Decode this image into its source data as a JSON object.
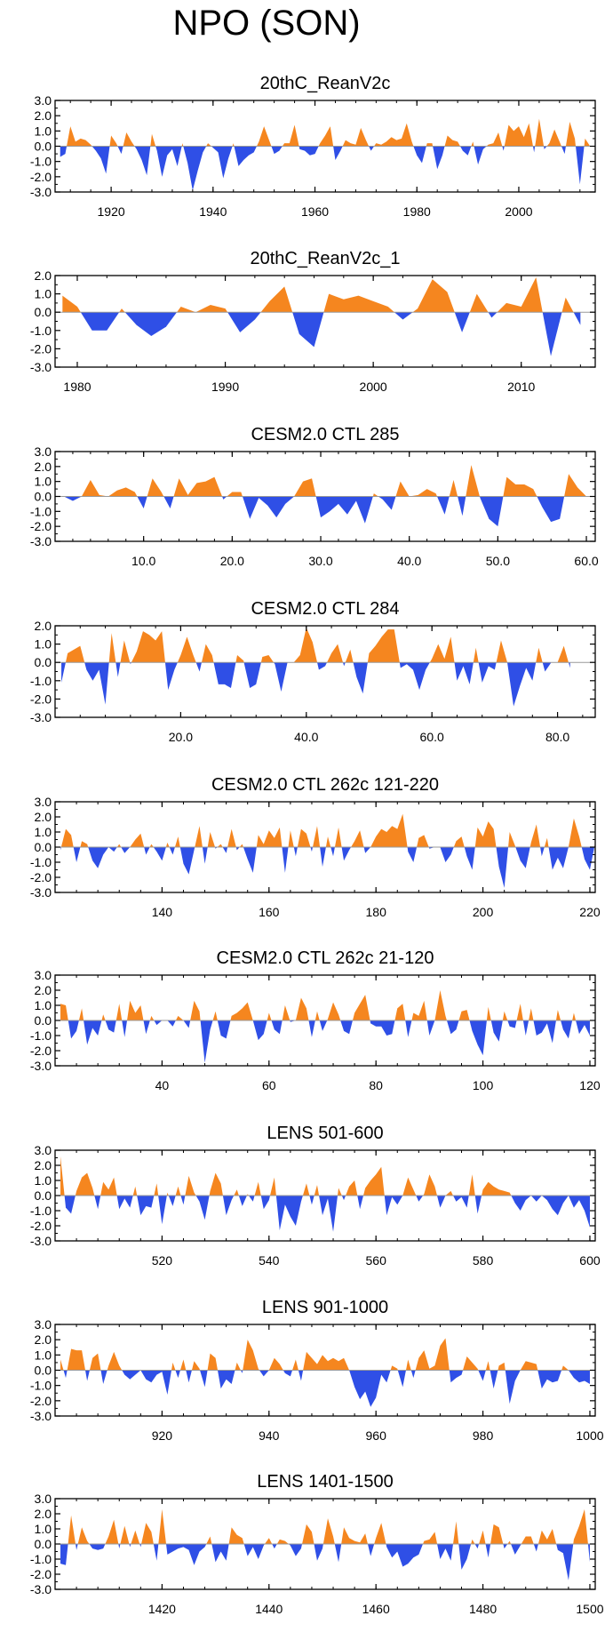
{
  "figure": {
    "title": "NPO (SON)"
  },
  "colors": {
    "positive": "#f5861f",
    "negative": "#2f4fe6",
    "axis": "#000000"
  },
  "chart_data": [
    {
      "type": "area",
      "title": "20thC_ReanV2c",
      "xlim": [
        1909,
        2015
      ],
      "ylim": [
        -3,
        3
      ],
      "yticks": [
        -3,
        -2,
        -1,
        0,
        1,
        2,
        3
      ],
      "ytick_labels": [
        "-3.0",
        "-2.0",
        "-1.0",
        "0.0",
        "1.0",
        "2.0",
        "3.0"
      ],
      "xticks": [
        1920,
        1940,
        1960,
        1980,
        2000
      ],
      "xtick_labels": [
        "1920",
        "1940",
        "1960",
        "1980",
        "2000"
      ],
      "x_start": 1910,
      "values": [
        -0.7,
        -0.5,
        1.3,
        0.3,
        0.5,
        0.4,
        0.1,
        -0.3,
        -0.8,
        -1.8,
        0.7,
        0.2,
        -0.5,
        0.9,
        0.3,
        -0.2,
        -0.9,
        -1.9,
        0.8,
        -0.3,
        -2.0,
        -0.6,
        -0.2,
        -1.3,
        0.2,
        -1.1,
        -2.9,
        -1.6,
        -0.4,
        0.2,
        -0.1,
        -0.4,
        -2.1,
        -0.8,
        0.2,
        -1.3,
        -0.9,
        -0.6,
        -0.4,
        0.3,
        1.3,
        0.4,
        -0.5,
        -0.3,
        0.2,
        0.2,
        1.4,
        -0.2,
        -0.3,
        -0.6,
        -0.5,
        0.2,
        0.7,
        1.3,
        -0.9,
        -0.3,
        0.4,
        0.2,
        0.1,
        1.2,
        0.4,
        -0.3,
        0.2,
        0.1,
        0.3,
        0.6,
        0.4,
        0.5,
        1.5,
        0.3,
        -0.6,
        -1.1,
        0.2,
        0.2,
        -1.5,
        -0.6,
        0.7,
        0.4,
        0.3,
        -0.3,
        -0.6,
        0.3,
        -1.2,
        -0.2,
        0.1,
        0.2,
        0.9,
        -0.3,
        1.4,
        1.0,
        1.3,
        0.6,
        1.5,
        -0.4,
        1.8,
        -0.2,
        0.2,
        1.1,
        0.3,
        -0.5,
        1.6,
        0.5,
        -2.5,
        0.5,
        0.0
      ]
    },
    {
      "type": "area",
      "title": "20thC_ReanV2c_1",
      "xlim": [
        1978.5,
        2015
      ],
      "ylim": [
        -3,
        2
      ],
      "yticks": [
        -3,
        -2,
        -1,
        0,
        1,
        2
      ],
      "ytick_labels": [
        "-3.0",
        "-2.0",
        "-1.0",
        "0.0",
        "1.0",
        "2.0"
      ],
      "xticks": [
        1980,
        1990,
        2000,
        2010
      ],
      "xtick_labels": [
        "1980",
        "1990",
        "2000",
        "2010"
      ],
      "x_start": 1979,
      "values": [
        0.9,
        0.3,
        -1.0,
        -1.0,
        0.2,
        -0.7,
        -1.3,
        -0.8,
        0.3,
        0.0,
        0.4,
        0.2,
        -1.1,
        -0.4,
        0.6,
        1.4,
        -1.2,
        -1.9,
        1.0,
        0.7,
        0.9,
        0.6,
        0.3,
        -0.4,
        0.2,
        1.8,
        1.1,
        -1.1,
        1.0,
        -0.3,
        0.5,
        0.3,
        1.9,
        -2.4,
        0.8,
        -0.7
      ]
    },
    {
      "type": "area",
      "title": "CESM2.0 CTL 285",
      "xlim": [
        0,
        61
      ],
      "ylim": [
        -3,
        3
      ],
      "yticks": [
        -3,
        -2,
        -1,
        0,
        1,
        2,
        3
      ],
      "ytick_labels": [
        "-3.0",
        "-2.0",
        "-1.0",
        "0.0",
        "1.0",
        "2.0",
        "3.0"
      ],
      "xticks": [
        10,
        20,
        30,
        40,
        50,
        60
      ],
      "xtick_labels": [
        "10.0",
        "20.0",
        "30.0",
        "40.0",
        "50.0",
        "60.0"
      ],
      "x_start": 1,
      "values": [
        0.0,
        -0.3,
        0.0,
        1.1,
        0.1,
        0.0,
        0.4,
        0.6,
        0.3,
        -0.8,
        1.2,
        0.3,
        -0.8,
        1.2,
        0.1,
        0.9,
        1.0,
        1.3,
        -0.2,
        0.3,
        0.3,
        -1.5,
        -0.1,
        -0.6,
        -1.4,
        -0.5,
        0.0,
        1.0,
        1.2,
        -1.4,
        -1.0,
        -0.5,
        -1.2,
        -0.3,
        -1.8,
        0.2,
        -0.2,
        -0.9,
        1.0,
        0.0,
        0.1,
        0.5,
        0.2,
        -1.2,
        1.1,
        -1.3,
        2.1,
        -0.1,
        -1.5,
        -2.0,
        1.3,
        0.8,
        0.8,
        0.5,
        -0.7,
        -1.7,
        -1.5,
        1.5,
        0.6,
        0.0
      ]
    },
    {
      "type": "area",
      "title": "CESM2.0 CTL 284",
      "xlim": [
        0,
        86
      ],
      "ylim": [
        -3,
        2
      ],
      "yticks": [
        -3,
        -2,
        -1,
        0,
        1,
        2
      ],
      "ytick_labels": [
        "-3.0",
        "-2.0",
        "-1.0",
        "0.0",
        "1.0",
        "2.0"
      ],
      "xticks": [
        20,
        40,
        60,
        80
      ],
      "xtick_labels": [
        "20.0",
        "40.0",
        "60.0",
        "80.0"
      ],
      "x_start": 1,
      "values": [
        -1.1,
        0.5,
        0.7,
        0.9,
        -0.4,
        -1.0,
        -0.4,
        -2.3,
        1.6,
        -0.8,
        1.2,
        -0.1,
        0.6,
        1.7,
        1.5,
        1.2,
        1.7,
        -1.5,
        -0.4,
        0.4,
        1.4,
        0.4,
        -0.5,
        1.0,
        0.4,
        -1.2,
        -1.2,
        -1.4,
        0.4,
        0.1,
        -1.4,
        -1.2,
        0.3,
        0.4,
        -0.1,
        -1.6,
        0.0,
        0.0,
        0.4,
        1.9,
        1.1,
        -0.4,
        -0.2,
        0.5,
        1.0,
        -0.2,
        0.7,
        -0.8,
        -1.7,
        0.5,
        0.9,
        1.4,
        1.8,
        1.8,
        -0.3,
        -0.1,
        -0.4,
        -1.5,
        -0.4,
        0.2,
        1.0,
        0.2,
        1.4,
        -1.0,
        -0.2,
        -1.2,
        0.8,
        -1.1,
        -0.2,
        -0.4,
        1.2,
        0.0,
        -2.4,
        -1.3,
        -0.3,
        -1.0,
        0.8,
        -0.5,
        0.0,
        0.0,
        0.9,
        -0.3
      ]
    },
    {
      "type": "area",
      "title": "CESM2.0 CTL 262c 121-220",
      "xlim": [
        120,
        221
      ],
      "ylim": [
        -3,
        3
      ],
      "yticks": [
        -3,
        -2,
        -1,
        0,
        1,
        2,
        3
      ],
      "ytick_labels": [
        "-3.0",
        "-2.0",
        "-1.0",
        "0.0",
        "1.0",
        "2.0",
        "3.0"
      ],
      "xticks": [
        140,
        160,
        180,
        200,
        220
      ],
      "xtick_labels": [
        "140",
        "160",
        "180",
        "200",
        "220"
      ],
      "x_start": 121,
      "values": [
        -0.2,
        1.2,
        0.8,
        -1.0,
        0.4,
        0.2,
        -0.9,
        -1.4,
        -0.5,
        0.0,
        -0.3,
        0.2,
        -0.4,
        0.0,
        0.5,
        0.9,
        -0.5,
        0.2,
        -0.3,
        -0.9,
        0.3,
        -0.5,
        0.7,
        -1.1,
        -1.8,
        -0.2,
        1.4,
        -1.1,
        1.0,
        -0.1,
        0.2,
        -0.4,
        1.2,
        -0.2,
        0.2,
        -0.8,
        -1.7,
        0.8,
        0.2,
        1.1,
        0.6,
        1.3,
        -1.7,
        1.1,
        -0.6,
        1.2,
        0.9,
        -0.3,
        1.4,
        -1.3,
        0.7,
        -0.6,
        1.3,
        -0.9,
        -0.2,
        0.4,
        1.1,
        -0.4,
        0.0,
        0.7,
        1.2,
        1.0,
        1.4,
        1.2,
        2.2,
        -0.3,
        -1.0,
        0.6,
        0.8,
        -0.1,
        0.0,
        0.0,
        -1.0,
        -0.5,
        0.4,
        0.7,
        -0.6,
        -1.5,
        1.3,
        0.7,
        1.7,
        1.2,
        -1.3,
        -2.7,
        1.0,
        0.1,
        -0.9,
        -1.4,
        0.3,
        1.5,
        -0.6,
        0.6,
        -1.5,
        -0.7,
        -1.4,
        0.0,
        1.9,
        0.7,
        -0.8,
        -1.5,
        0.3
      ]
    },
    {
      "type": "area",
      "title": "CESM2.0 CTL 262c 21-120",
      "xlim": [
        20,
        121
      ],
      "ylim": [
        -3,
        3
      ],
      "yticks": [
        -3,
        -2,
        -1,
        0,
        1,
        2,
        3
      ],
      "ytick_labels": [
        "-3.0",
        "-2.0",
        "-1.0",
        "0.0",
        "1.0",
        "2.0",
        "3.0"
      ],
      "xticks": [
        40,
        60,
        80,
        100,
        120
      ],
      "xtick_labels": [
        "40",
        "60",
        "80",
        "100",
        "120"
      ],
      "x_start": 21,
      "values": [
        1.1,
        1.0,
        -1.2,
        -0.7,
        0.8,
        -1.6,
        -0.5,
        -1.0,
        0.4,
        -0.6,
        -0.8,
        1.1,
        -1.1,
        1.3,
        0.5,
        1.0,
        -0.9,
        0.3,
        -0.3,
        0.0,
        0.0,
        -0.4,
        0.3,
        0.0,
        -0.5,
        1.3,
        0.6,
        -2.8,
        -0.6,
        0.6,
        -1.0,
        -1.2,
        0.3,
        0.5,
        0.8,
        1.2,
        0.0,
        -1.3,
        -0.9,
        0.5,
        -0.6,
        -0.9,
        1.0,
        -0.1,
        0.0,
        1.5,
        0.8,
        -1.1,
        0.6,
        -0.7,
        0.1,
        1.2,
        0.4,
        -0.7,
        -0.9,
        0.5,
        1.1,
        1.7,
        -0.2,
        -0.4,
        -0.4,
        -1.0,
        -0.9,
        0.8,
        1.1,
        -1.1,
        0.5,
        0.3,
        1.3,
        -1.0,
        0.0,
        2.0,
        0.3,
        -0.9,
        -0.6,
        0.6,
        0.7,
        -0.7,
        -1.6,
        -2.3,
        0.9,
        -0.8,
        -1.4,
        0.6,
        -0.4,
        -0.5,
        1.1,
        -1.0,
        0.8,
        -1.0,
        -0.8,
        -0.2,
        -1.5,
        0.7,
        -0.6,
        -1.2,
        0.5,
        -0.9,
        -0.3,
        -1.0
      ]
    },
    {
      "type": "area",
      "title": "LENS 501-600",
      "xlim": [
        500,
        601
      ],
      "ylim": [
        -3,
        3
      ],
      "yticks": [
        -3,
        -2,
        -1,
        0,
        1,
        2,
        3
      ],
      "ytick_labels": [
        "-3.0",
        "-2.0",
        "-1.0",
        "0.0",
        "1.0",
        "2.0",
        "3.0"
      ],
      "xticks": [
        520,
        540,
        560,
        580,
        600
      ],
      "xtick_labels": [
        "520",
        "540",
        "560",
        "580",
        "600"
      ],
      "x_start": 501,
      "values": [
        2.6,
        -0.8,
        -1.2,
        0.3,
        1.2,
        1.5,
        0.5,
        -0.9,
        0.9,
        0.4,
        1.2,
        -0.9,
        -0.2,
        -0.8,
        0.6,
        -1.3,
        -0.7,
        -0.8,
        0.8,
        -1.9,
        0.2,
        -0.7,
        0.6,
        -0.6,
        1.3,
        0.2,
        -0.4,
        -1.6,
        0.3,
        1.5,
        0.8,
        -1.3,
        -0.3,
        0.4,
        -0.7,
        0.1,
        -0.4,
        0.9,
        -0.9,
        -0.3,
        1.2,
        -2.3,
        -0.6,
        -1.4,
        -2.0,
        -0.4,
        0.8,
        -0.6,
        0.7,
        -1.3,
        -0.2,
        -2.4,
        0.5,
        -0.3,
        0.6,
        1.0,
        -0.9,
        0.5,
        1.0,
        1.4,
        1.9,
        -1.3,
        -0.1,
        -0.6,
        0.0,
        1.2,
        0.4,
        -0.4,
        0.1,
        1.4,
        0.6,
        -0.8,
        0.0,
        0.3,
        -0.4,
        -0.1,
        -0.8,
        1.4,
        -1.2,
        0.4,
        0.9,
        0.6,
        0.4,
        0.3,
        0.2,
        -0.5,
        -1.0,
        -0.3,
        0.0,
        -0.4,
        0.0,
        -0.3,
        -0.9,
        -1.3,
        -0.5,
        0.0,
        -0.8,
        -0.3,
        -1.0,
        -2.1
      ]
    },
    {
      "type": "area",
      "title": "LENS 901-1000",
      "xlim": [
        900,
        1001
      ],
      "ylim": [
        -3,
        3
      ],
      "yticks": [
        -3,
        -2,
        -1,
        0,
        1,
        2,
        3
      ],
      "ytick_labels": [
        "-3.0",
        "-2.0",
        "-1.0",
        "0.0",
        "1.0",
        "2.0",
        "3.0"
      ],
      "xticks": [
        920,
        940,
        960,
        980,
        1000
      ],
      "xtick_labels": [
        "920",
        "940",
        "960",
        "980",
        "1000"
      ],
      "x_start": 901,
      "values": [
        0.7,
        -0.5,
        1.4,
        1.3,
        1.3,
        -0.7,
        0.8,
        1.1,
        -0.9,
        0.3,
        1.2,
        0.3,
        -0.3,
        -0.6,
        -0.3,
        0.0,
        -0.6,
        -0.8,
        -0.3,
        -0.1,
        -1.6,
        0.5,
        -0.5,
        0.7,
        -0.8,
        0.6,
        0.1,
        -1.1,
        1.1,
        0.8,
        -1.2,
        -0.6,
        -0.9,
        0.5,
        -0.2,
        2.0,
        1.3,
        0.1,
        -0.4,
        0.0,
        0.8,
        0.4,
        -0.2,
        -0.4,
        0.7,
        -0.7,
        1.2,
        0.8,
        0.4,
        1.0,
        0.6,
        0.8,
        0.6,
        0.8,
        0.0,
        -1.1,
        -1.9,
        -1.4,
        -2.4,
        -1.8,
        -0.3,
        -0.8,
        0.3,
        0.1,
        -1.1,
        0.7,
        -0.5,
        0.8,
        1.3,
        0.1,
        0.3,
        1.6,
        2.1,
        -0.8,
        -0.5,
        -0.3,
        0.9,
        0.5,
        0.1,
        -0.7,
        0.6,
        -1.2,
        0.3,
        0.5,
        -2.2,
        -0.7,
        0.0,
        0.6,
        0.5,
        0.4,
        -1.2,
        -0.6,
        -0.8,
        -0.7,
        0.3,
        0.0,
        -0.5,
        -0.8,
        -0.7,
        -0.9
      ]
    },
    {
      "type": "area",
      "title": "LENS 1401-1500",
      "xlim": [
        1400,
        1501
      ],
      "ylim": [
        -3,
        3
      ],
      "yticks": [
        -3,
        -2,
        -1,
        0,
        1,
        2,
        3
      ],
      "ytick_labels": [
        "-3.0",
        "-2.0",
        "-1.0",
        "0.0",
        "1.0",
        "2.0",
        "3.0"
      ],
      "xticks": [
        1420,
        1440,
        1460,
        1480,
        1500
      ],
      "xtick_labels": [
        "1420",
        "1440",
        "1460",
        "1480",
        "1500"
      ],
      "x_start": 1401,
      "values": [
        -1.3,
        -1.4,
        1.9,
        -0.4,
        1.1,
        0.2,
        -0.3,
        -0.4,
        -0.3,
        0.5,
        1.6,
        -0.3,
        1.2,
        -0.2,
        0.9,
        -0.2,
        1.4,
        0.8,
        -1.1,
        2.3,
        -0.7,
        -0.5,
        -0.3,
        -0.2,
        -0.4,
        -1.4,
        -0.5,
        -0.2,
        0.5,
        -1.2,
        -0.5,
        -1.1,
        1.1,
        0.6,
        0.4,
        -0.8,
        -0.2,
        -1.0,
        -0.1,
        0.4,
        -0.3,
        0.3,
        0.2,
        -0.1,
        -0.8,
        -0.3,
        1.3,
        0.8,
        -1.1,
        -0.3,
        1.7,
        0.5,
        -1.2,
        1.1,
        0.4,
        0.2,
        0.1,
        0.7,
        -0.8,
        0.4,
        1.4,
        -0.2,
        -0.9,
        -0.5,
        -1.5,
        -1.3,
        -0.9,
        -0.7,
        0.2,
        0.3,
        0.8,
        -1.0,
        -0.3,
        -1.1,
        1.5,
        -1.7,
        -1.0,
        0.3,
        -0.3,
        0.9,
        -0.9,
        1.3,
        1.1,
        -0.3,
        0.2,
        -0.7,
        -0.1,
        0.5,
        0.5,
        -0.5,
        0.9,
        0.3,
        1.0,
        -0.4,
        -0.6,
        -2.4,
        0.3,
        1.2,
        2.3,
        -1.2
      ]
    }
  ]
}
